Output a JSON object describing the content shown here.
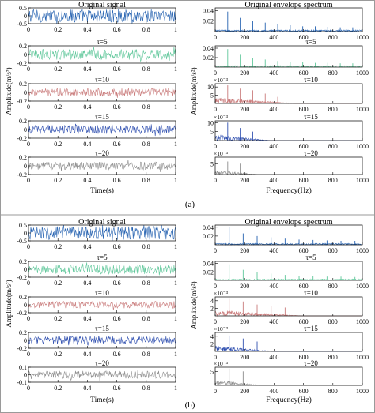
{
  "figure": {
    "border_color": "#9a9a9a",
    "trace_colors": [
      "#2461b0",
      "#5fc79a",
      "#c97a7a",
      "#3050b0",
      "#8c8c8c"
    ]
  },
  "chart_data": [
    {
      "type": "line",
      "id": "a-time",
      "panel_label": "(a)",
      "title": "Original signal",
      "xlabel": "Time(s)",
      "ylabel": "Amplitude(m/s²)",
      "xlim": [
        0,
        1
      ],
      "x_ticks": [
        "0",
        "0.2",
        "0.4",
        "0.6",
        "0.8",
        "1"
      ],
      "series": [
        {
          "name": "",
          "ylim": [
            -0.5,
            0.5
          ],
          "y_ticks": [
            "-0.5",
            "0",
            "0.5"
          ],
          "amplitude": 0.42,
          "color": "#2461b0"
        },
        {
          "name": "τ=5",
          "ylim": [
            -0.2,
            0.2
          ],
          "y_ticks": [
            "-0.2",
            "0",
            "0.2"
          ],
          "amplitude": 0.12,
          "color": "#5fc79a"
        },
        {
          "name": "τ=10",
          "ylim": [
            -0.2,
            0.2
          ],
          "y_ticks": [
            "-0.2",
            "0",
            "0.2"
          ],
          "amplitude": 0.09,
          "color": "#c97a7a"
        },
        {
          "name": "τ=15",
          "ylim": [
            -0.2,
            0.2
          ],
          "y_ticks": [
            "-0.2",
            "0",
            "0.2"
          ],
          "amplitude": 0.1,
          "color": "#3050b0"
        },
        {
          "name": "τ=20",
          "ylim": [
            -0.2,
            0.2
          ],
          "y_ticks": [
            "-0.2",
            "0",
            "0.2"
          ],
          "amplitude": 0.09,
          "color": "#8c8c8c"
        }
      ]
    },
    {
      "type": "line",
      "id": "a-spec",
      "panel_label": "(a)",
      "title": "Original envelope spectrum",
      "xlabel": "Frequency(Hz)",
      "ylabel": "Amplitude(m/s²)",
      "xlim": [
        0,
        1000
      ],
      "x_ticks": [
        "0",
        "200",
        "400",
        "600",
        "800",
        "1000"
      ],
      "series": [
        {
          "name": "",
          "exponent": "",
          "ylim": [
            0,
            0.045
          ],
          "y_ticks": [
            "0.02",
            "0.04"
          ],
          "peak_decay": 0.25,
          "color": "#2461b0",
          "peaks_hz": [
            85,
            170,
            255,
            340,
            425,
            510,
            595,
            680,
            765,
            850,
            935
          ],
          "peaks_amp": [
            0.038,
            0.026,
            0.02,
            0.017,
            0.014,
            0.012,
            0.01,
            0.01,
            0.009,
            0.008,
            0.008
          ]
        },
        {
          "name": "τ=5",
          "exponent": "",
          "ylim": [
            0,
            0.045
          ],
          "y_ticks": [
            "0.02",
            "0.04"
          ],
          "peak_decay": 0.25,
          "color": "#5fc79a",
          "peaks_hz": [
            85,
            170,
            255,
            340,
            425,
            510,
            595,
            680,
            765,
            850,
            935
          ],
          "peaks_amp": [
            0.038,
            0.026,
            0.02,
            0.016,
            0.013,
            0.011,
            0.01,
            0.009,
            0.009,
            0.008,
            0.008
          ]
        },
        {
          "name": "τ=10",
          "exponent": "×10⁻³",
          "ylim": [
            0,
            0.012
          ],
          "y_ticks": [
            "5",
            "10"
          ],
          "peak_decay": 0.6,
          "color": "#c97a7a",
          "peaks_hz": [
            85,
            170,
            255,
            340,
            425
          ],
          "peaks_amp": [
            0.011,
            0.009,
            0.008,
            0.006,
            0.004
          ]
        },
        {
          "name": "τ=15",
          "exponent": "×10⁻³",
          "ylim": [
            0,
            0.011
          ],
          "y_ticks": [
            "5",
            "10"
          ],
          "peak_decay": 0.7,
          "color": "#3050b0",
          "peaks_hz": [
            85,
            170,
            255
          ],
          "peaks_amp": [
            0.01,
            0.007,
            0.005
          ]
        },
        {
          "name": "τ=20",
          "exponent": "×10⁻³",
          "ylim": [
            0,
            0.008
          ],
          "y_ticks": [
            "5"
          ],
          "peak_decay": 0.7,
          "color": "#8c8c8c",
          "peaks_hz": [
            85,
            170
          ],
          "peaks_amp": [
            0.006,
            0.005
          ]
        }
      ]
    },
    {
      "type": "line",
      "id": "b-time",
      "panel_label": "(b)",
      "title": "Original signal",
      "xlabel": "Time(s)",
      "ylabel": "Amplitude(m/s²)",
      "xlim": [
        0,
        1
      ],
      "x_ticks": [
        "0",
        "0.2",
        "0.4",
        "0.6",
        "0.8",
        "1"
      ],
      "series": [
        {
          "name": "",
          "ylim": [
            -0.5,
            0.5
          ],
          "y_ticks": [
            "-0.5",
            "0",
            "0.5"
          ],
          "amplitude": 0.42,
          "color": "#2461b0"
        },
        {
          "name": "τ=5",
          "ylim": [
            -0.2,
            0.2
          ],
          "y_ticks": [
            "-0.2",
            "0",
            "0.2"
          ],
          "amplitude": 0.12,
          "color": "#5fc79a"
        },
        {
          "name": "τ=10",
          "ylim": [
            -0.2,
            0.2
          ],
          "y_ticks": [
            "-0.2",
            "0",
            "0.2"
          ],
          "amplitude": 0.09,
          "color": "#c97a7a"
        },
        {
          "name": "τ=15",
          "ylim": [
            -0.2,
            0.2
          ],
          "y_ticks": [
            "-0.2",
            "0",
            "0.2"
          ],
          "amplitude": 0.1,
          "color": "#3050b0"
        },
        {
          "name": "τ=20",
          "ylim": [
            -0.1,
            0.1
          ],
          "y_ticks": [
            "-0.1",
            "0",
            "0.1"
          ],
          "amplitude": 0.05,
          "color": "#8c8c8c"
        }
      ]
    },
    {
      "type": "line",
      "id": "b-spec",
      "panel_label": "(b)",
      "title": "Original envelope spectrum",
      "xlabel": "Frequency(Hz)",
      "ylabel": "Amplitude(m/s²)",
      "xlim": [
        0,
        1000
      ],
      "x_ticks": [
        "0",
        "200",
        "400",
        "600",
        "800",
        "1000"
      ],
      "series": [
        {
          "name": "",
          "exponent": "",
          "ylim": [
            0,
            0.045
          ],
          "y_ticks": [
            "0.02",
            "0.04"
          ],
          "peak_decay": 0.25,
          "color": "#2461b0",
          "peaks_hz": [
            95,
            190,
            285,
            380,
            475,
            570,
            665,
            760,
            855,
            950
          ],
          "peaks_amp": [
            0.04,
            0.026,
            0.02,
            0.017,
            0.014,
            0.012,
            0.011,
            0.01,
            0.009,
            0.009
          ]
        },
        {
          "name": "τ=5",
          "exponent": "",
          "ylim": [
            0,
            0.045
          ],
          "y_ticks": [
            "0.02",
            "0.04"
          ],
          "peak_decay": 0.25,
          "color": "#5fc79a",
          "peaks_hz": [
            95,
            190,
            285,
            380,
            475,
            570,
            665,
            760,
            855,
            950
          ],
          "peaks_amp": [
            0.038,
            0.025,
            0.019,
            0.016,
            0.013,
            0.011,
            0.01,
            0.009,
            0.009,
            0.008
          ]
        },
        {
          "name": "τ=10",
          "exponent": "×10⁻³",
          "ylim": [
            0,
            0.005
          ],
          "y_ticks": [
            "2",
            "4"
          ],
          "peak_decay": 0.6,
          "color": "#c97a7a",
          "peaks_hz": [
            95,
            190,
            285,
            380,
            475
          ],
          "peaks_amp": [
            0.0045,
            0.0038,
            0.003,
            0.0026,
            0.0022
          ]
        },
        {
          "name": "τ=15",
          "exponent": "×10⁻³",
          "ylim": [
            0,
            0.005
          ],
          "y_ticks": [
            "2",
            "4"
          ],
          "peak_decay": 0.7,
          "color": "#3050b0",
          "peaks_hz": [
            95,
            190,
            285
          ],
          "peaks_amp": [
            0.0042,
            0.0034,
            0.0026
          ]
        },
        {
          "name": "τ=20",
          "exponent": "×10⁻³",
          "ylim": [
            0,
            0.0065
          ],
          "y_ticks": [
            "5"
          ],
          "peak_decay": 0.7,
          "color": "#8c8c8c",
          "peaks_hz": [
            95,
            190
          ],
          "peaks_amp": [
            0.006,
            0.005
          ]
        }
      ]
    }
  ]
}
